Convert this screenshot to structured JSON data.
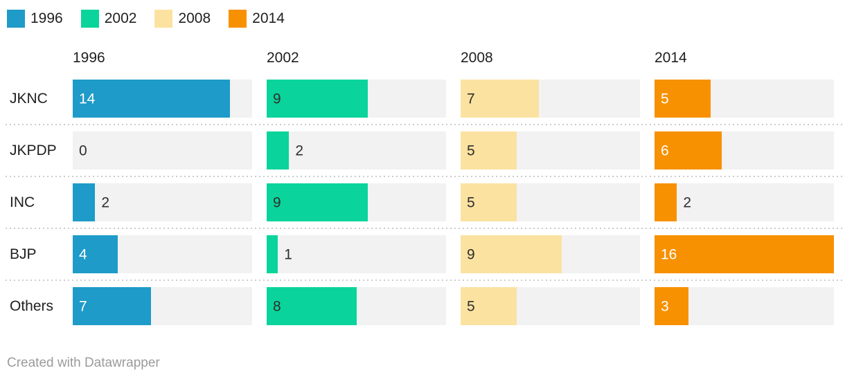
{
  "legend": {
    "items": [
      {
        "label": "1996",
        "color": "#1E9BC8"
      },
      {
        "label": "2002",
        "color": "#0AD49B"
      },
      {
        "label": "2008",
        "color": "#FBE2A1"
      },
      {
        "label": "2014",
        "color": "#F79102"
      }
    ]
  },
  "footer": {
    "text": "Created with Datawrapper"
  },
  "style": {
    "track_color": "#f2f2f2",
    "outside_value_text_color": "#2e2e2e",
    "divider_color": "#cccccc",
    "footer_text_color": "#9b9b9b"
  },
  "chart_data": {
    "type": "bar",
    "orientation": "horizontal",
    "layout": "small-multiples-columns",
    "title": "",
    "categories": [
      "JKNC",
      "JKPDP",
      "INC",
      "BJP",
      "Others"
    ],
    "columns": [
      "1996",
      "2002",
      "2008",
      "2014"
    ],
    "series": [
      {
        "name": "1996",
        "color": "#1E9BC8",
        "inside_label_color": "#ffffff",
        "values": [
          14,
          0,
          2,
          4,
          7
        ]
      },
      {
        "name": "2002",
        "color": "#0AD49B",
        "inside_label_color": "#2e2e2e",
        "values": [
          9,
          2,
          9,
          1,
          8
        ]
      },
      {
        "name": "2008",
        "color": "#FBE2A1",
        "inside_label_color": "#2e2e2e",
        "values": [
          7,
          5,
          5,
          9,
          5
        ]
      },
      {
        "name": "2014",
        "color": "#F79102",
        "inside_label_color": "#ffffff",
        "values": [
          5,
          6,
          2,
          16,
          3
        ]
      }
    ],
    "xlim": [
      0,
      16
    ],
    "grid": false,
    "legend_position": "top",
    "value_labels": "on-bars",
    "attribution": "Created with Datawrapper"
  }
}
